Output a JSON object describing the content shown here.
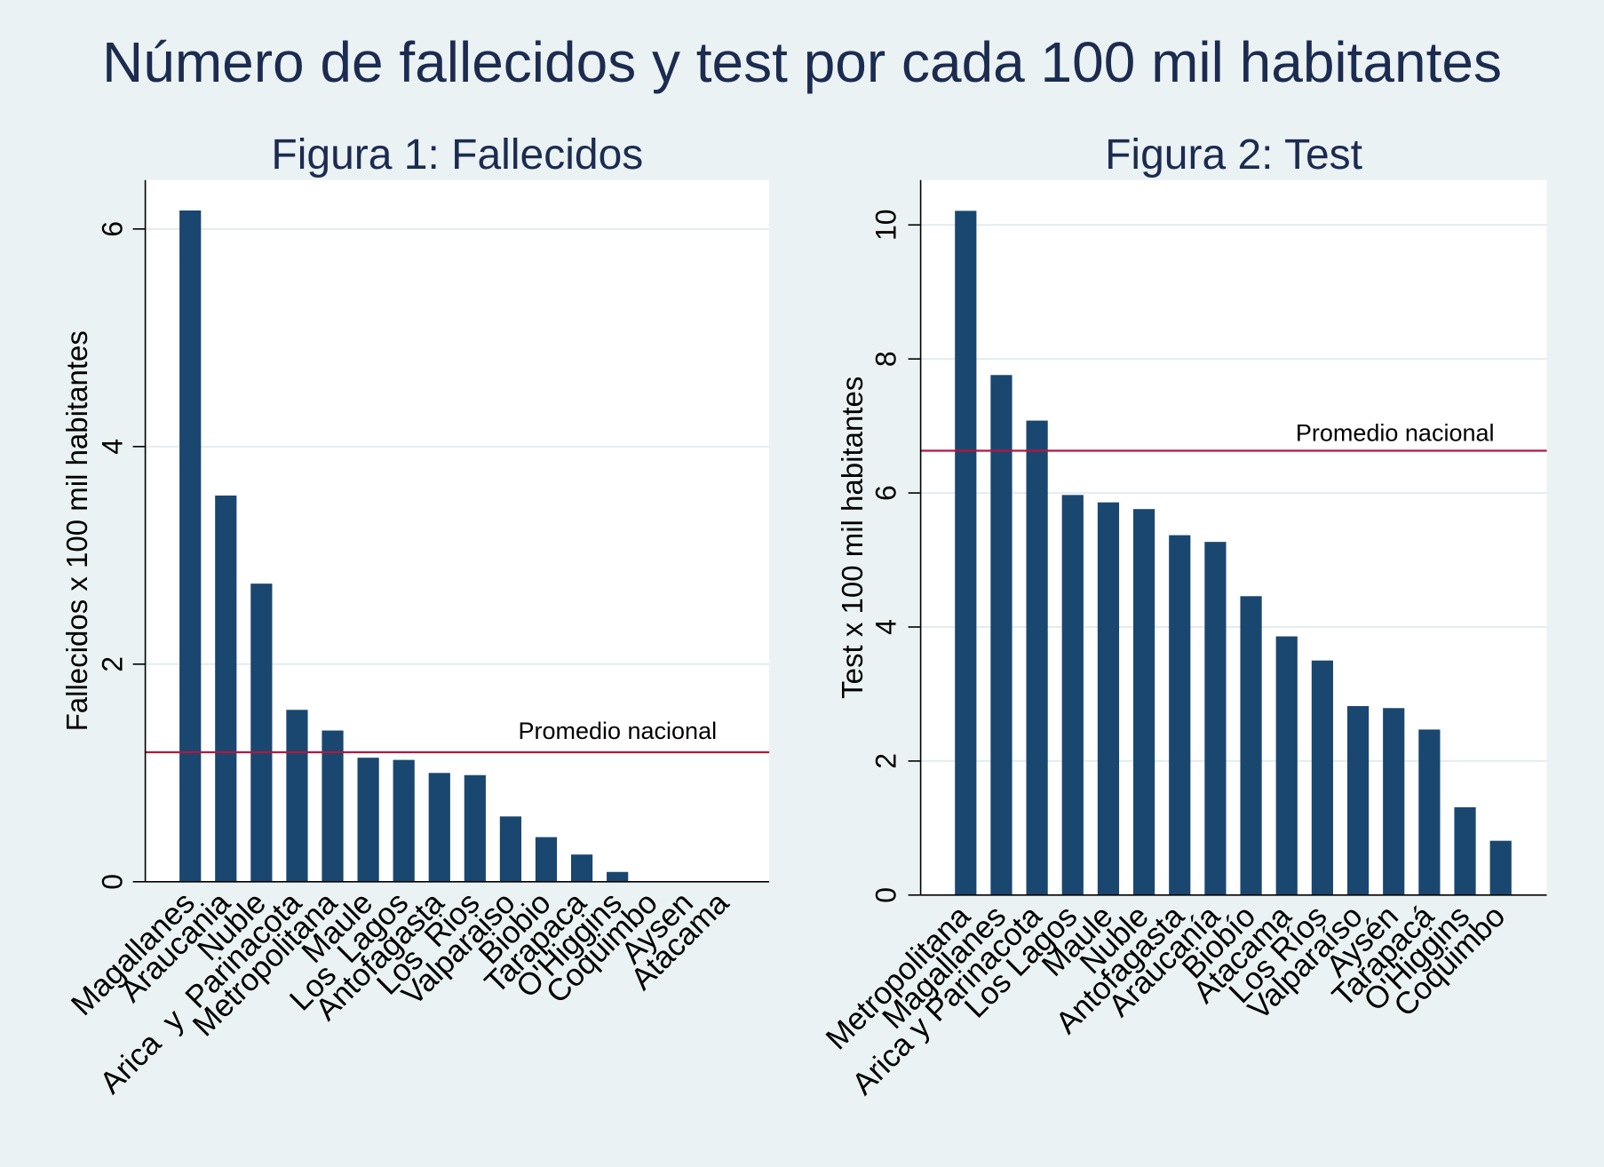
{
  "title": "Número de fallecidos y test por cada 100 mil habitantes",
  "colors": {
    "background": "#eaf2f3",
    "plot_background": "#ffffff",
    "bar": "#1a476f",
    "reference_line": "#b2173f",
    "grid": "#e3ecee",
    "title_text": "#1c2b50",
    "axis": "#000000"
  },
  "chart_data": [
    {
      "type": "bar",
      "title": "Figura 1: Fallecidos",
      "xlabel": "",
      "ylabel": "Fallecidos x 100 mil habitantes",
      "categories": [
        "Magallanes",
        "Araucania",
        "Nuble",
        "Arica  y  Parinacota",
        "Metropolitana",
        "Maule",
        "Los  Lagos",
        "Antofagasta",
        "Los  Rios",
        "Valparaiso",
        "Biobio",
        "Tarapaca",
        "O'Higgins",
        "Coquimbo",
        "Aysen",
        "Atacama"
      ],
      "values": [
        6.17,
        3.55,
        2.74,
        1.58,
        1.39,
        1.14,
        1.12,
        1.0,
        0.98,
        0.6,
        0.41,
        0.25,
        0.09,
        0,
        0,
        0
      ],
      "ylim": [
        0,
        6.45
      ],
      "yticks": [
        0,
        2,
        4,
        6
      ],
      "grid": true,
      "reference_line": {
        "label": "Promedio nacional",
        "value": 1.19
      }
    },
    {
      "type": "bar",
      "title": "Figura 2: Test",
      "xlabel": "",
      "ylabel": "Test x 100 mil habitantes",
      "categories": [
        "Metropolitana",
        "Magallanes",
        "Arica y Parinacota",
        "Los Lagos",
        "Maule",
        "Nuble",
        "Antofagasta",
        "Araucanía",
        "Biobío",
        "Atacama",
        "Los Ríos",
        "Valparaíso",
        "Aysén",
        "Tarapacá",
        "O'Higgins",
        "Coquimbo"
      ],
      "values": [
        10.21,
        7.76,
        7.08,
        5.97,
        5.86,
        5.76,
        5.37,
        5.27,
        4.46,
        3.86,
        3.5,
        2.82,
        2.79,
        2.47,
        1.31,
        0.81
      ],
      "ylim": [
        0,
        10.67
      ],
      "yticks": [
        0,
        2,
        4,
        6,
        8,
        10
      ],
      "grid": true,
      "reference_line": {
        "label": "Promedio nacional",
        "value": 6.63
      }
    }
  ]
}
